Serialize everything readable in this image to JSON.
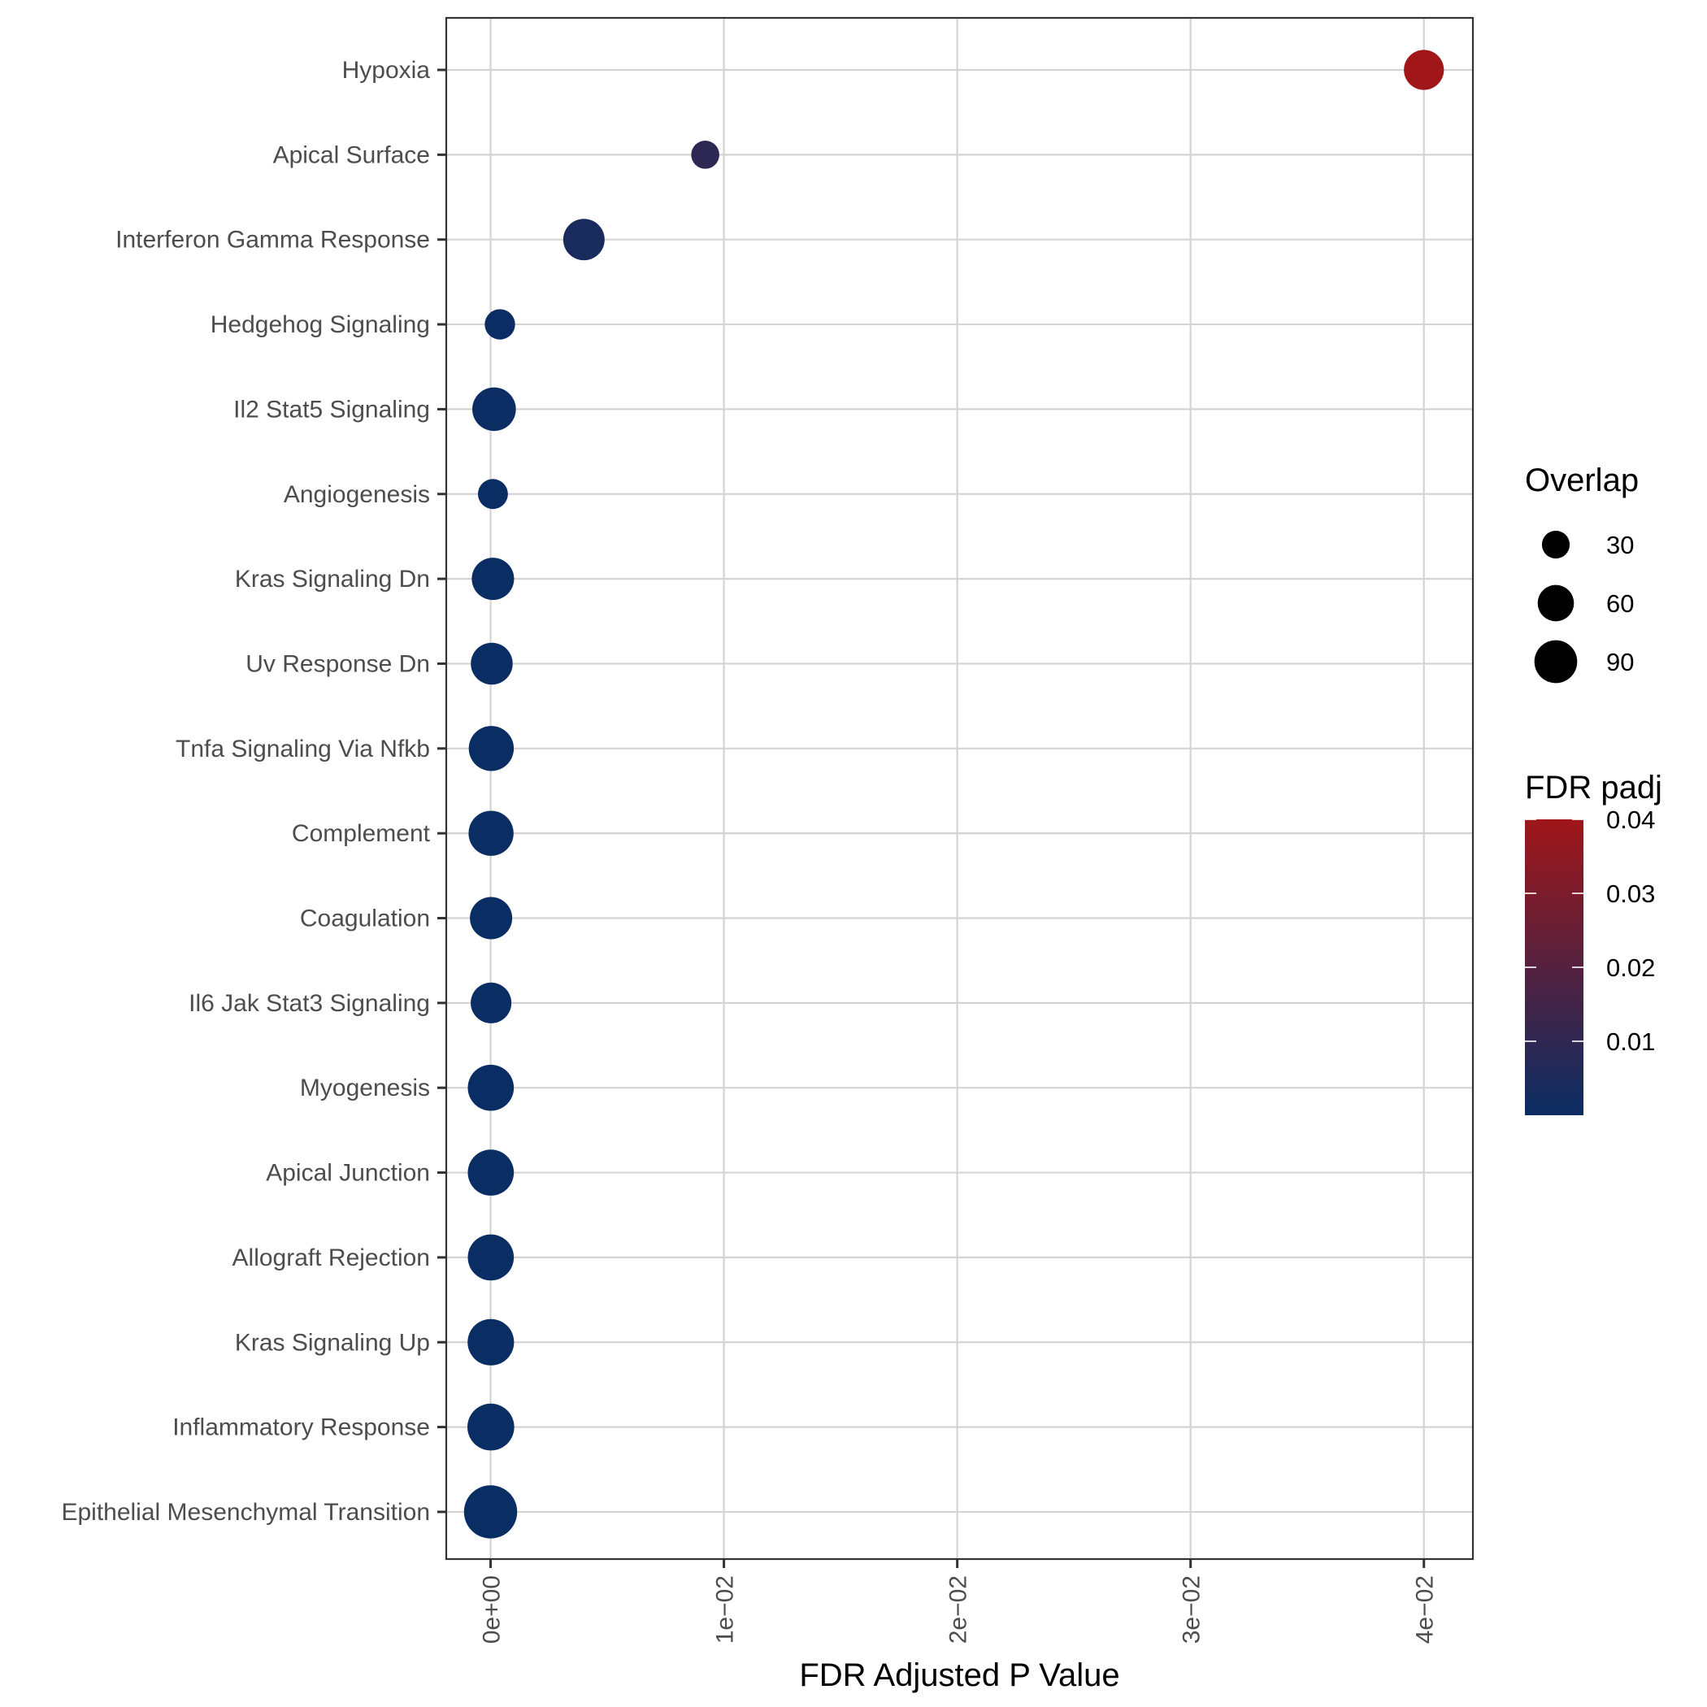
{
  "chart_data": {
    "type": "scatter",
    "title": "",
    "xlabel": "FDR Adjusted P Value",
    "ylabel": "",
    "xlim": [
      -0.0019,
      0.0421
    ],
    "x_ticks": [
      {
        "value": 0.0,
        "label": "0e+00"
      },
      {
        "value": 0.01,
        "label": "1e−02"
      },
      {
        "value": 0.02,
        "label": "2e−02"
      },
      {
        "value": 0.03,
        "label": "3e−02"
      },
      {
        "value": 0.04,
        "label": "4e−02"
      }
    ],
    "grid": true,
    "categories": [
      "Hypoxia",
      "Apical Surface",
      "Interferon Gamma Response",
      "Hedgehog Signaling",
      "Il2 Stat5 Signaling",
      "Angiogenesis",
      "Kras Signaling Dn",
      "Uv Response Dn",
      "Tnfa Signaling Via Nfkb",
      "Complement",
      "Coagulation",
      "Il6 Jak Stat3 Signaling",
      "Myogenesis",
      "Apical Junction",
      "Allograft Rejection",
      "Kras Signaling Up",
      "Inflammatory Response",
      "Epithelial Mesenchymal Transition"
    ],
    "points": [
      {
        "term": "Hypoxia",
        "fdr": 0.04,
        "overlap": 62
      },
      {
        "term": "Apical Surface",
        "fdr": 0.0092,
        "overlap": 22
      },
      {
        "term": "Interferon Gamma Response",
        "fdr": 0.004,
        "overlap": 68
      },
      {
        "term": "Hedgehog Signaling",
        "fdr": 0.0004,
        "overlap": 28
      },
      {
        "term": "Il2 Stat5 Signaling",
        "fdr": 0.00015,
        "overlap": 78
      },
      {
        "term": "Angiogenesis",
        "fdr": 0.0001,
        "overlap": 27
      },
      {
        "term": "Kras Signaling Dn",
        "fdr": 0.0001,
        "overlap": 72
      },
      {
        "term": "Uv Response Dn",
        "fdr": 5e-05,
        "overlap": 70
      },
      {
        "term": "Tnfa Signaling Via Nfkb",
        "fdr": 3e-05,
        "overlap": 85
      },
      {
        "term": "Complement",
        "fdr": 2e-05,
        "overlap": 85
      },
      {
        "term": "Coagulation",
        "fdr": 2e-05,
        "overlap": 72
      },
      {
        "term": "Il6 Jak Stat3 Signaling",
        "fdr": 2e-05,
        "overlap": 65
      },
      {
        "term": "Myogenesis",
        "fdr": 1e-05,
        "overlap": 90
      },
      {
        "term": "Apical Junction",
        "fdr": 1e-05,
        "overlap": 90
      },
      {
        "term": "Allograft Rejection",
        "fdr": 1e-05,
        "overlap": 90
      },
      {
        "term": "Kras Signaling Up",
        "fdr": 1e-05,
        "overlap": 92
      },
      {
        "term": "Inflammatory Response",
        "fdr": 1e-05,
        "overlap": 94
      },
      {
        "term": "Epithelial Mesenchymal Transition",
        "fdr": 0.0,
        "overlap": 130
      }
    ],
    "size_legend": {
      "title": "Overlap",
      "entries": [
        {
          "value": 30,
          "label": "30"
        },
        {
          "value": 60,
          "label": "60"
        },
        {
          "value": 90,
          "label": "90"
        }
      ]
    },
    "color_legend": {
      "title": "FDR padj",
      "range": [
        0,
        0.04
      ],
      "low_color": "#0a2d64",
      "high_color": "#a01619",
      "ticks": [
        {
          "value": 0.01,
          "label": "0.01"
        },
        {
          "value": 0.02,
          "label": "0.02"
        },
        {
          "value": 0.03,
          "label": "0.03"
        },
        {
          "value": 0.04,
          "label": "0.04"
        }
      ]
    },
    "legend_position": "right"
  }
}
